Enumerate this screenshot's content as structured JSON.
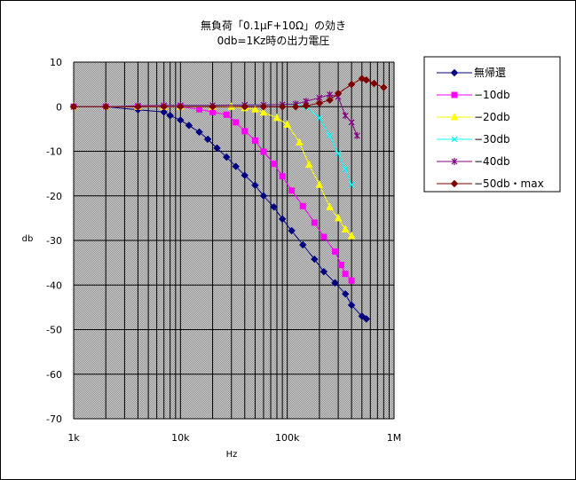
{
  "chart_data": {
    "type": "line",
    "title_line1": "無負荷「0.1μF+10Ω」の効き",
    "title_line2": "0db=1Kz時の出力電圧",
    "xlabel": "Hz",
    "ylabel": "db",
    "x_scale": "log",
    "xlim": [
      1000,
      1000000
    ],
    "ylim": [
      -70,
      10
    ],
    "y_ticks": [
      "10",
      "0",
      "-10",
      "-20",
      "-30",
      "-40",
      "-50",
      "-60",
      "-70"
    ],
    "x_ticks": [
      "1k",
      "10k",
      "100k",
      "1M"
    ],
    "grid": true,
    "legend_position": "right",
    "series": [
      {
        "name": "無帰還",
        "color": "#000080",
        "marker": "diamond",
        "points": [
          [
            1000,
            0
          ],
          [
            2000,
            0
          ],
          [
            4000,
            -0.7
          ],
          [
            7000,
            -1.2
          ],
          [
            8000,
            -2.0
          ],
          [
            10000,
            -3.0
          ],
          [
            12000,
            -4.2
          ],
          [
            15000,
            -5.7
          ],
          [
            18000,
            -7.3
          ],
          [
            22000,
            -9.3
          ],
          [
            27000,
            -11.3
          ],
          [
            33000,
            -13.4
          ],
          [
            40000,
            -15.4
          ],
          [
            50000,
            -17.6
          ],
          [
            60000,
            -20.0
          ],
          [
            75000,
            -22.5
          ],
          [
            90000,
            -25.2
          ],
          [
            110000,
            -27.8
          ],
          [
            140000,
            -31.0
          ],
          [
            180000,
            -34.2
          ],
          [
            220000,
            -37.0
          ],
          [
            280000,
            -39.5
          ],
          [
            350000,
            -42.0
          ],
          [
            400000,
            -44.5
          ],
          [
            500000,
            -47.0
          ],
          [
            550000,
            -47.6
          ]
        ]
      },
      {
        "name": "−10db",
        "color": "#ff00ff",
        "marker": "square",
        "points": [
          [
            1000,
            0
          ],
          [
            2000,
            0
          ],
          [
            4000,
            0
          ],
          [
            7000,
            0
          ],
          [
            10000,
            0
          ],
          [
            15000,
            -0.6
          ],
          [
            20000,
            -1.2
          ],
          [
            27000,
            -1.8
          ],
          [
            33000,
            -3.5
          ],
          [
            40000,
            -5.5
          ],
          [
            50000,
            -7.6
          ],
          [
            60000,
            -10.1
          ],
          [
            75000,
            -12.8
          ],
          [
            90000,
            -15.6
          ],
          [
            110000,
            -18.8
          ],
          [
            140000,
            -22.3
          ],
          [
            180000,
            -26.0
          ],
          [
            220000,
            -29.2
          ],
          [
            280000,
            -32.5
          ],
          [
            320000,
            -35.5
          ],
          [
            350000,
            -37.5
          ],
          [
            400000,
            -39.0
          ]
        ]
      },
      {
        "name": "−20db",
        "color": "#ffff00",
        "marker": "triangle",
        "points": [
          [
            1000,
            0
          ],
          [
            2000,
            0
          ],
          [
            4000,
            0
          ],
          [
            7000,
            0
          ],
          [
            10000,
            0
          ],
          [
            20000,
            0
          ],
          [
            30000,
            0
          ],
          [
            40000,
            -0.3
          ],
          [
            50000,
            -0.6
          ],
          [
            60000,
            -1.3
          ],
          [
            80000,
            -2.5
          ],
          [
            100000,
            -4.0
          ],
          [
            130000,
            -8.0
          ],
          [
            160000,
            -13.0
          ],
          [
            200000,
            -17.5
          ],
          [
            250000,
            -22.5
          ],
          [
            300000,
            -25.0
          ],
          [
            350000,
            -27.5
          ],
          [
            400000,
            -29.0
          ]
        ]
      },
      {
        "name": "−30db",
        "color": "#00ffff",
        "marker": "x",
        "points": [
          [
            1000,
            0
          ],
          [
            2000,
            0
          ],
          [
            4000,
            0.2
          ],
          [
            7000,
            0.3
          ],
          [
            10000,
            0.3
          ],
          [
            20000,
            0.3
          ],
          [
            40000,
            0.4
          ],
          [
            60000,
            0.4
          ],
          [
            90000,
            0.5
          ],
          [
            120000,
            0.5
          ],
          [
            150000,
            0
          ],
          [
            200000,
            -2.5
          ],
          [
            250000,
            -6.5
          ],
          [
            300000,
            -10.5
          ],
          [
            350000,
            -14.0
          ],
          [
            400000,
            -17.5
          ]
        ]
      },
      {
        "name": "−40db",
        "color": "#800080",
        "marker": "star",
        "points": [
          [
            1000,
            0
          ],
          [
            2000,
            0
          ],
          [
            4000,
            0.2
          ],
          [
            7000,
            0.3
          ],
          [
            10000,
            0.3
          ],
          [
            20000,
            0.3
          ],
          [
            40000,
            0.4
          ],
          [
            60000,
            0.4
          ],
          [
            90000,
            0.5
          ],
          [
            120000,
            0.6
          ],
          [
            150000,
            1.2
          ],
          [
            200000,
            2.0
          ],
          [
            250000,
            2.7
          ],
          [
            300000,
            2.2
          ],
          [
            350000,
            -2.0
          ],
          [
            400000,
            -3.5
          ],
          [
            450000,
            -6.5
          ]
        ]
      },
      {
        "name": "−50db・max",
        "color": "#800000",
        "marker": "diamond",
        "points": [
          [
            1000,
            0
          ],
          [
            2000,
            0
          ],
          [
            4000,
            0
          ],
          [
            7000,
            0
          ],
          [
            10000,
            0
          ],
          [
            20000,
            0
          ],
          [
            40000,
            0
          ],
          [
            60000,
            0
          ],
          [
            90000,
            0
          ],
          [
            120000,
            0
          ],
          [
            150000,
            0.2
          ],
          [
            200000,
            0.8
          ],
          [
            250000,
            1.5
          ],
          [
            300000,
            3.0
          ],
          [
            400000,
            5.0
          ],
          [
            500000,
            6.3
          ],
          [
            550000,
            6.0
          ],
          [
            650000,
            5.2
          ],
          [
            800000,
            4.3
          ]
        ]
      }
    ]
  }
}
